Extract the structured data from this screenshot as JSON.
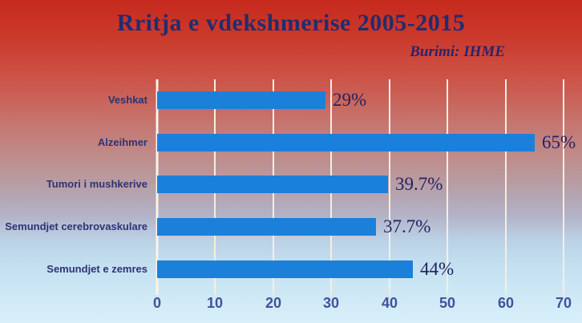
{
  "slide": {
    "title": "Rritja e vdekshmerise 2005-2015",
    "source_note": "Burimi: IHME"
  },
  "chart_data": {
    "type": "bar",
    "orientation": "horizontal",
    "title": "Rritja e vdekshmerise 2005-2015",
    "source_note": "Burimi: IHME",
    "categories": [
      "Veshkat",
      "Alzeihmer",
      "Tumori i mushkerive",
      "Semundjet cerebrovaskulare",
      "Semundjet e zemres"
    ],
    "values": [
      29,
      65,
      39.7,
      37.7,
      44
    ],
    "value_labels": [
      "29%",
      "65%",
      "39.7%",
      "37.7%",
      "44%"
    ],
    "x_ticks": [
      0,
      10,
      20,
      30,
      40,
      50,
      60,
      70
    ],
    "xlim": [
      0,
      70
    ],
    "grid": true,
    "legend": "none",
    "colors": {
      "bar": "#1a80d9",
      "gridline": "#f5edde",
      "axis_line": "#faf4e8",
      "title_text": "#232c6e",
      "category_text": "#2e3374",
      "value_text": "#242261",
      "tick_text": "#41519a",
      "background_top": "#c62a1d",
      "background_bottom": "#d8f0fa"
    }
  }
}
